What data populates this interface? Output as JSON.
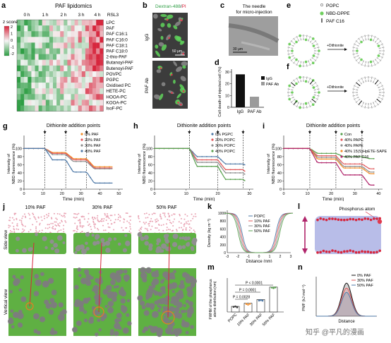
{
  "panel_labels": [
    "a",
    "b",
    "c",
    "d",
    "e",
    "f",
    "g",
    "h",
    "i",
    "j",
    "k",
    "l",
    "m",
    "n"
  ],
  "a": {
    "title": "PAF lipidomics",
    "columns": [
      "0 h",
      "1 h",
      "2 h",
      "3 h",
      "4 h",
      "RSL3"
    ],
    "legend_title": "z score",
    "legend_ticks": [
      "2",
      "1",
      "0",
      "-1",
      "-2"
    ],
    "rows": [
      "LPC",
      "PAF",
      "PAF C16:1",
      "PAF C16:0",
      "PAF C18:1",
      "PAF C18:0",
      "2-thio-PAF",
      "Butanoyl-PAF",
      "Butenoyl-PAF",
      "POVPC",
      "PGPC",
      "Oxidised PC",
      "HETE-PC",
      "HOOA-PC",
      "KOOA-PC",
      "IsoF-PC"
    ],
    "colors": {
      "high": "#d7263d",
      "mid": "#f5f5f5",
      "low": "#2e9e44"
    }
  },
  "b": {
    "title_left": "Dextran-488",
    "title_sep": "/",
    "title_right": "PI",
    "row_labels": [
      "IgG",
      "PAF Ab"
    ],
    "scalebar": "50 μm"
  },
  "c": {
    "title": "The needle for micro-injection",
    "scalebar": "30 μm"
  },
  "d": {
    "ylabel": "Cell death of injected cell (%)",
    "yticks": [
      "0",
      "10",
      "20",
      "30"
    ],
    "categories": [
      "IgG",
      "PAF Ab"
    ],
    "values": [
      28,
      9
    ],
    "legend": [
      "IgG",
      "PAF Ab"
    ],
    "colors": [
      "#111111",
      "#9a9a9a"
    ]
  },
  "e": {
    "legend": [
      "POPC",
      "NBD-DPPE",
      "PAF C16"
    ],
    "arrow_label": "+Dithionite"
  },
  "f": {
    "arrow_label": "+Dithionite"
  },
  "g": {
    "title": "Dithionite addition points",
    "xlabel": "Time (min)",
    "ylabel": "Intensity of NBD fluorescence (%)",
    "xticks": [
      "0",
      "10",
      "20",
      "30",
      "40",
      "50"
    ],
    "yticks": [
      "0",
      "20",
      "40",
      "60",
      "80",
      "100"
    ],
    "legend": [
      "0% PAF",
      "20% PAF",
      "30% PAF",
      "40% PAF"
    ]
  },
  "h": {
    "title": "Dithionite addition points",
    "xlabel": "Time (min)",
    "ylabel": "Intensity of NBD fluorescence (%)",
    "xticks": [
      "0",
      "10",
      "20",
      "30"
    ],
    "yticks": [
      "0",
      "20",
      "40",
      "60",
      "80",
      "100"
    ],
    "legend": [
      "0% PGPC",
      "20% POPC",
      "30% POPC",
      "40% POPC"
    ]
  },
  "i": {
    "title": "Dithionite addition points",
    "xlabel": "Time (min)",
    "ylabel": "Intensity of NBD fluorescence (%)",
    "xticks": [
      "0",
      "10",
      "20",
      "30",
      "40"
    ],
    "yticks": [
      "0",
      "20",
      "40",
      "60",
      "80",
      "100"
    ],
    "legend": [
      "Con",
      "40% PAPC",
      "40% PAPE",
      "40% 15(S)HpETE-SAPE",
      "40% PAF C16"
    ]
  },
  "j": {
    "columns": [
      "10% PAF",
      "30% PAF",
      "50% PAF"
    ],
    "row_labels": [
      "Side view",
      "Vertical view"
    ]
  },
  "k": {
    "xlabel": "Distance (nm)",
    "ylabel": "Density (kg m⁻³)",
    "xticks": [
      "-3",
      "-2",
      "-1",
      "0",
      "1",
      "2",
      "3"
    ],
    "yticks": [
      "0",
      "200",
      "400",
      "600",
      "800",
      "1000"
    ],
    "legend": [
      "POPC",
      "10% PAF",
      "30% PAF",
      "50% PAF"
    ]
  },
  "l": {
    "title": "Phosphorus atom"
  },
  "m": {
    "ylabel": "FWHM of the phosphorus atoms distribution (nm)",
    "categories": [
      "POPC",
      "10% PAF",
      "30% PAF",
      "50% PAF"
    ],
    "pvalues": [
      "P = 0.0028",
      "P = 0.0001",
      "P < 0.0001"
    ]
  },
  "n": {
    "xlabel": "Distance",
    "ylabel": "PMF (kJ mol⁻¹)",
    "legend": [
      "0% PAF",
      "30% PAF",
      "50% PAF"
    ]
  },
  "watermark": "知乎 @平凡的漫画"
}
